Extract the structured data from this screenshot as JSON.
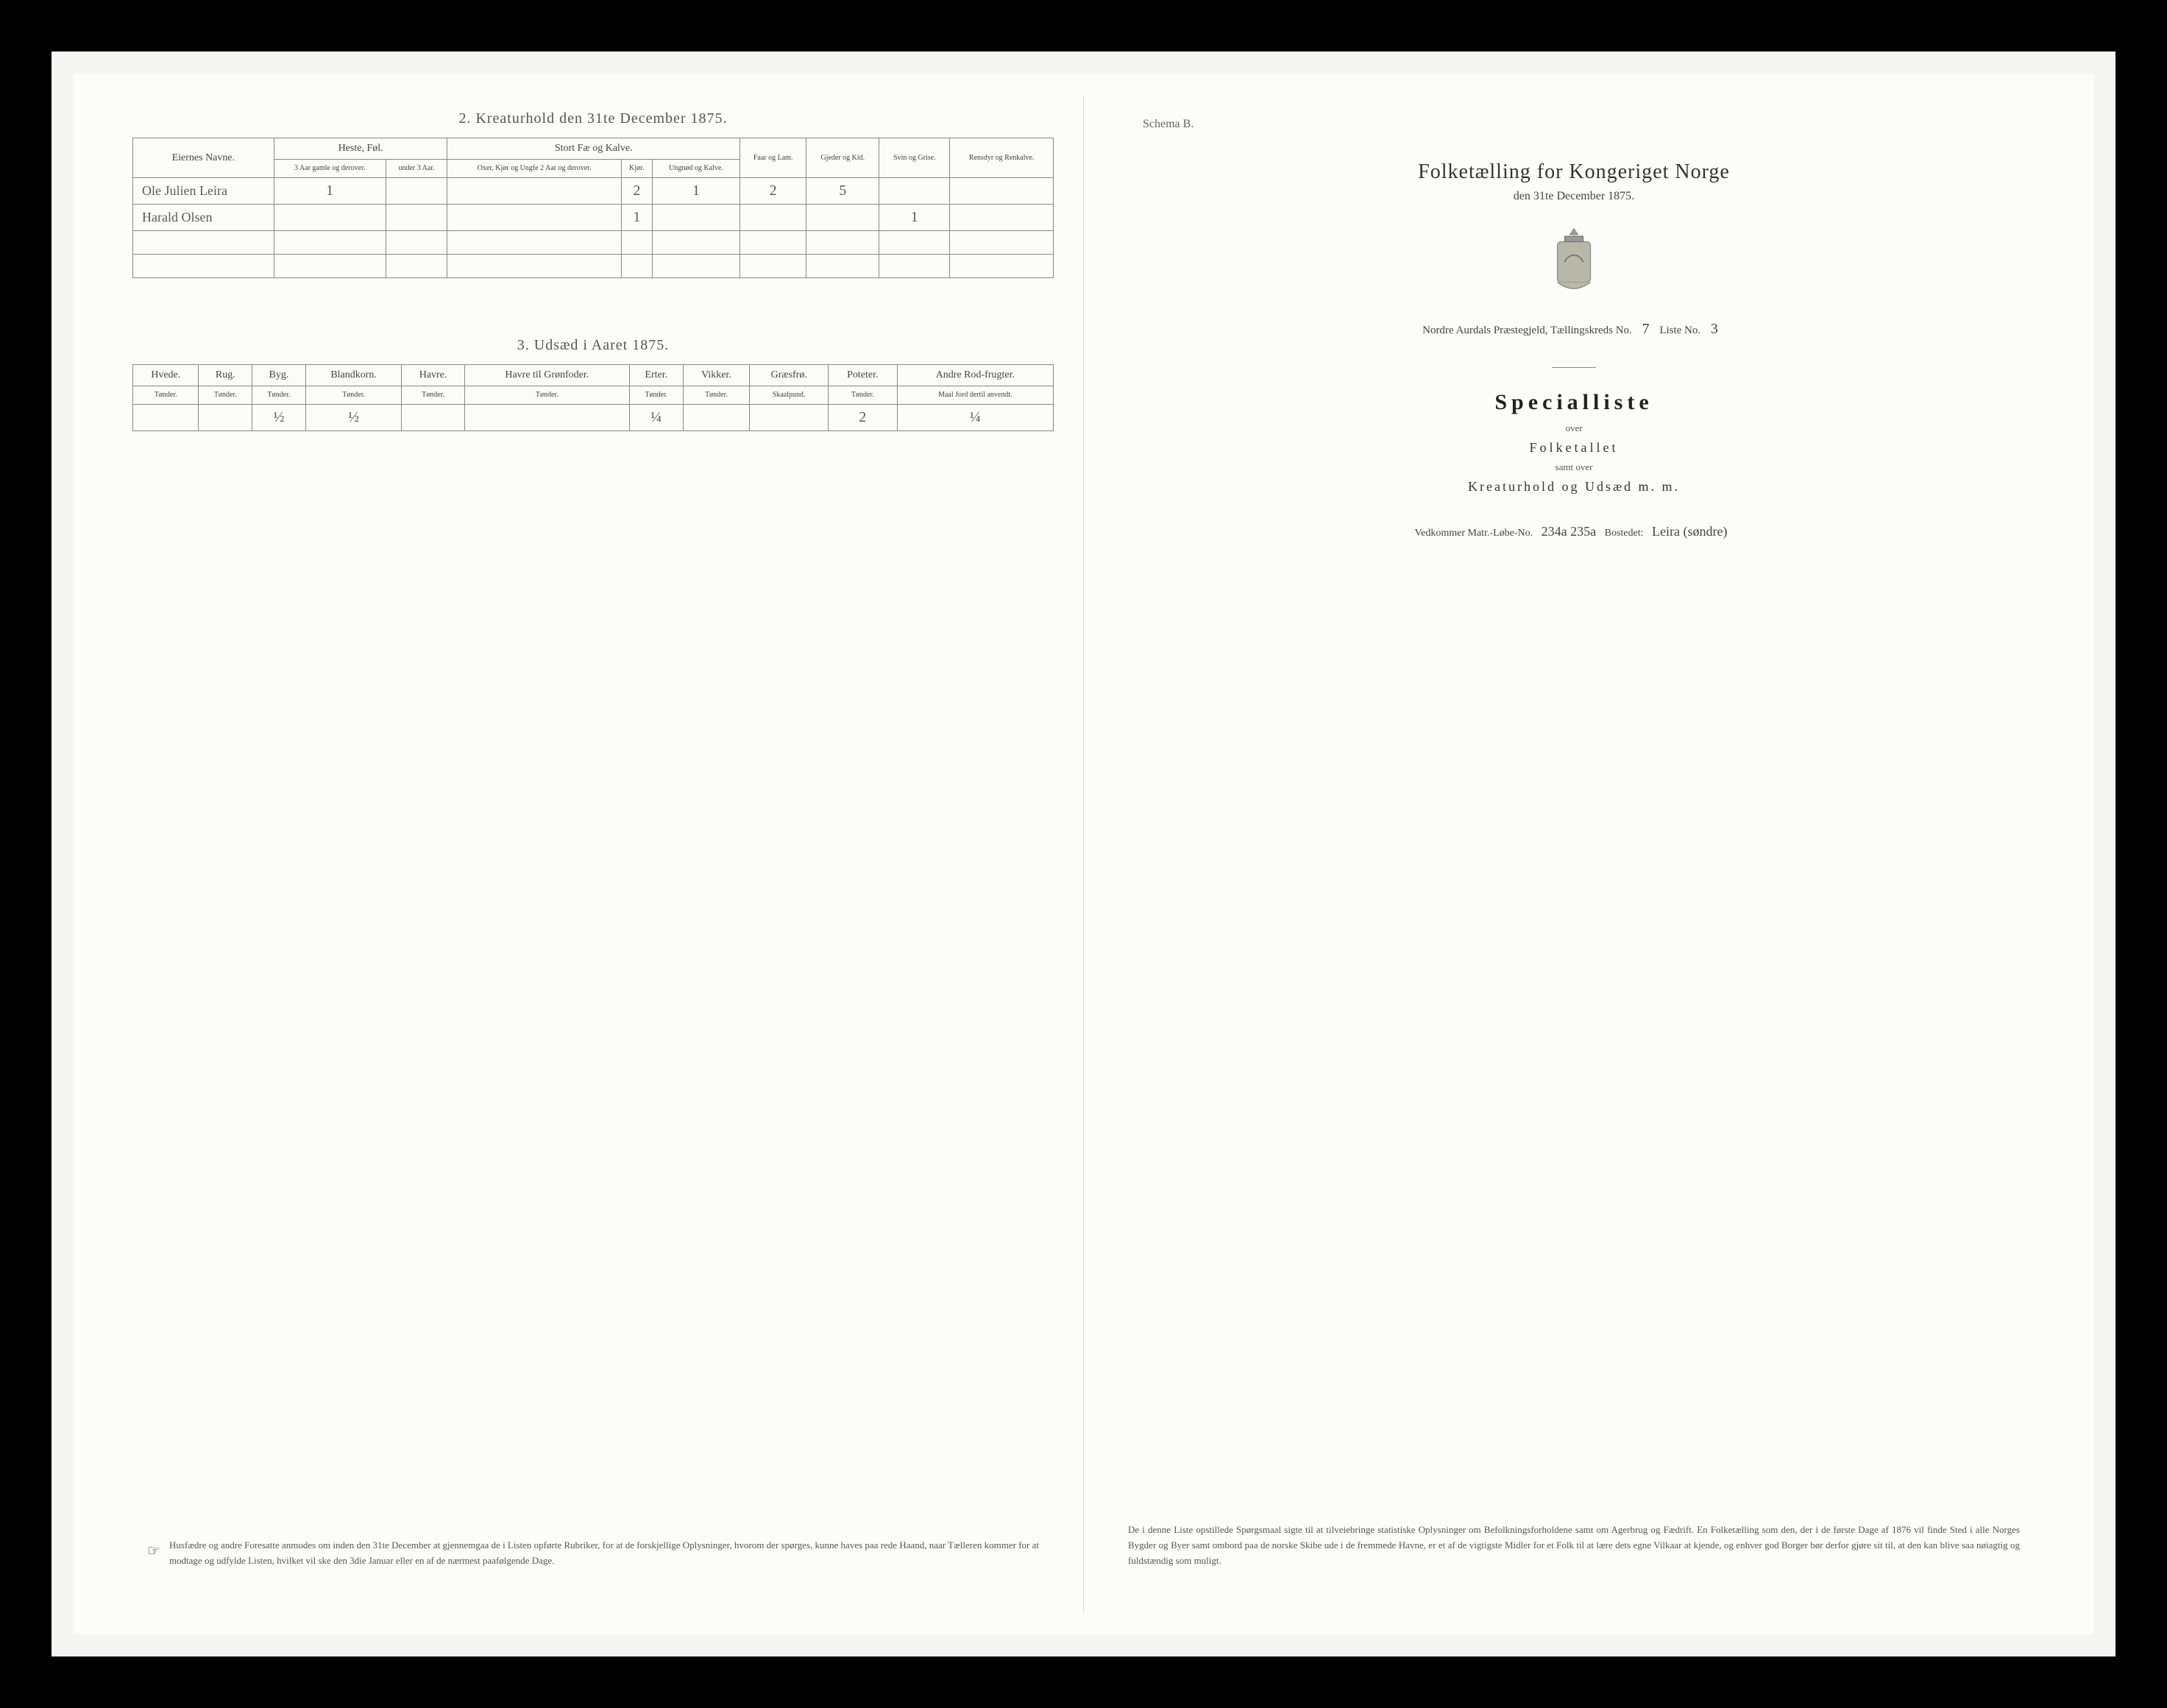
{
  "left": {
    "section2": {
      "title": "2.  Kreaturhold den 31te December 1875.",
      "colgroups": {
        "eier": "Eiernes Navne.",
        "heste": "Heste, Føl.",
        "fae": "Stort Fæ og Kalve.",
        "faar": "Faar og Lam.",
        "gjeder": "Gjeder og Kid.",
        "svin": "Svin og Grise.",
        "ren": "Rensdyr og Renkalve."
      },
      "subcols": {
        "heste_a": "3 Aar gamle og derover.",
        "heste_b": "under 3 Aar.",
        "fae_a": "Oxer, Kjør og Ungfe 2 Aar og derover.",
        "fae_b": "Kjør.",
        "fae_c": "Ungnød og Kalve."
      },
      "rows": [
        {
          "name": "Ole Julien Leira",
          "vals": [
            "1",
            "",
            "",
            "2",
            "1",
            "2",
            "5",
            "",
            ""
          ]
        },
        {
          "name": "Harald Olsen",
          "vals": [
            "",
            "",
            "",
            "1",
            "",
            "",
            "",
            "1",
            ""
          ]
        },
        {
          "name": "",
          "vals": [
            "",
            "",
            "",
            "",
            "",
            "",
            "",
            "",
            ""
          ]
        },
        {
          "name": "",
          "vals": [
            "",
            "",
            "",
            "",
            "",
            "",
            "",
            "",
            ""
          ]
        }
      ]
    },
    "section3": {
      "title": "3.  Udsæd i Aaret 1875.",
      "cols": [
        "Hvede.",
        "Rug.",
        "Byg.",
        "Blandkorn.",
        "Havre.",
        "Havre til Grønfoder.",
        "Erter.",
        "Vikker.",
        "Græsfrø.",
        "Poteter.",
        "Andre Rod-frugter."
      ],
      "units": [
        "Tønder.",
        "Tønder.",
        "Tønder.",
        "Tønder.",
        "Tønder.",
        "Tønder.",
        "Tønder.",
        "Tønder.",
        "Skaalpund.",
        "Tønder.",
        "Maal Jord dertil anvendt."
      ],
      "row": [
        "",
        "",
        "½",
        "½",
        "",
        "",
        "¼",
        "",
        "",
        "2",
        "¼"
      ]
    },
    "footnote": "Husfædre og andre Foresatte anmodes om inden den 31te December at gjennemgaa de i Listen opførte Rubriker, for at de forskjellige Oplysninger, hvorom der spørges, kunne haves paa rede Haand, naar Tælleren kommer for at modtage og udfylde Listen, hvilket vil ske den 3die Januar eller en af de nærmest paafølgende Dage."
  },
  "right": {
    "schema": "Schema B.",
    "title": "Folketælling for Kongeriget Norge",
    "subtitle": "den 31te December 1875.",
    "district_label": "Nordre Aurdals Præstegjeld, Tællingskreds No.",
    "district_no": "7",
    "liste_label": "Liste No.",
    "liste_no": "3",
    "special": "Specialliste",
    "over1": "over",
    "folketallet": "Folketallet",
    "samtover": "samt over",
    "kreatur": "Kreaturhold og Udsæd m. m.",
    "vedk_label": "Vedkommer Matr.-Løbe-No.",
    "vedk_no": "234a 235a",
    "bostedet_label": "Bostedet:",
    "bostedet": "Leira (søndre)",
    "footnote": "De i denne Liste opstillede Spørgsmaal sigte til at tilveiebringe statistiske Oplysninger om Befolkningsforholdene samt om Agerbrug og Fædrift.  En Folketælling som den, der i de første Dage af 1876 vil finde Sted i alle Norges Bygder og Byer samt ombord paa de norske Skibe ude i de fremmede Havne, er et af de vigtigste Midler for et Folk til at lære dets egne Vilkaar at kjende, og enhver god Borger bør derfor gjøre sit til, at den kan blive saa nøiagtig og fuldstændig som muligt."
  },
  "colors": {
    "page_bg": "#fcfcfa",
    "frame_bg": "#f5f5f2",
    "border": "#888888",
    "text": "#444444",
    "handwriting": "#5a5a55"
  }
}
